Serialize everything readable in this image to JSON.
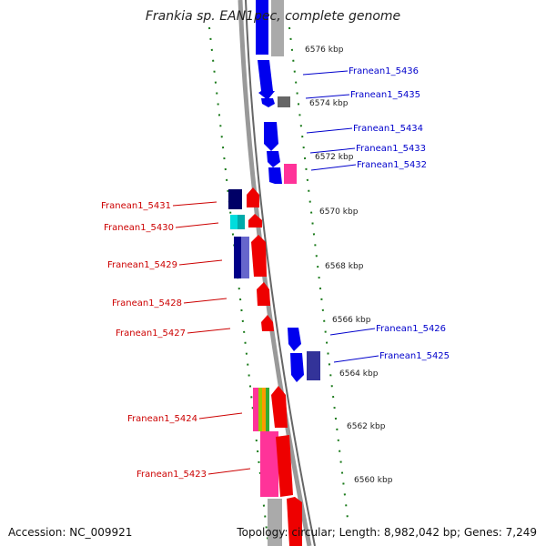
{
  "title": "Frankia sp. EAN1pec, complete genome",
  "footer": {
    "accession": "Accession: NC_009921",
    "summary": "Topology: circular; Length: 8,982,042 bp; Genes: 7,249"
  },
  "colors": {
    "forward_labels": "#0000cc",
    "reverse_labels": "#cc0000",
    "backbone": "#888888",
    "ticks": "#1a7a1a"
  },
  "scale_labels": [
    "6576 kbp",
    "6574 kbp",
    "6572 kbp",
    "6570 kbp",
    "6568 kbp",
    "6566 kbp",
    "6564 kbp",
    "6562 kbp",
    "6560 kbp"
  ],
  "gene_labels_forward": [
    "Franean1_5436",
    "Franean1_5435",
    "Franean1_5434",
    "Franean1_5433",
    "Franean1_5432",
    "Franean1_5426",
    "Franean1_5425"
  ],
  "gene_labels_reverse": [
    "Franean1_5431",
    "Franean1_5430",
    "Franean1_5429",
    "Franean1_5428",
    "Franean1_5427",
    "Franean1_5424",
    "Franean1_5423"
  ]
}
